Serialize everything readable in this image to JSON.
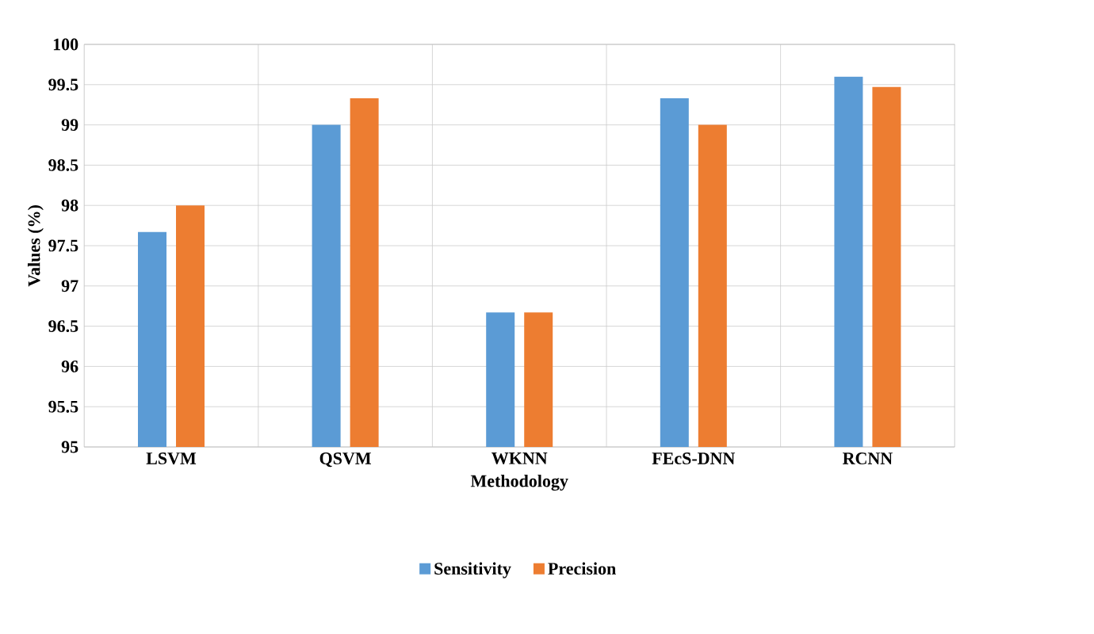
{
  "chart_data": {
    "type": "bar",
    "xlabel": "Methodology",
    "ylabel": "Values (%)",
    "categories": [
      "LSVM",
      "QSVM",
      "WKNN",
      "FEcS-DNN",
      "RCNN"
    ],
    "series": [
      {
        "name": "Sensitivity",
        "color": "#5b9bd5",
        "values": [
          97.67,
          99.0,
          96.67,
          99.33,
          99.6
        ]
      },
      {
        "name": "Precision",
        "color": "#ed7d31",
        "values": [
          98.0,
          99.33,
          96.67,
          99.0,
          99.47
        ]
      }
    ],
    "ylim": [
      95,
      100
    ],
    "yticks": [
      95,
      95.5,
      96,
      96.5,
      97,
      97.5,
      98,
      98.5,
      99,
      99.5,
      100
    ],
    "grid": true,
    "legend": "bottom"
  }
}
